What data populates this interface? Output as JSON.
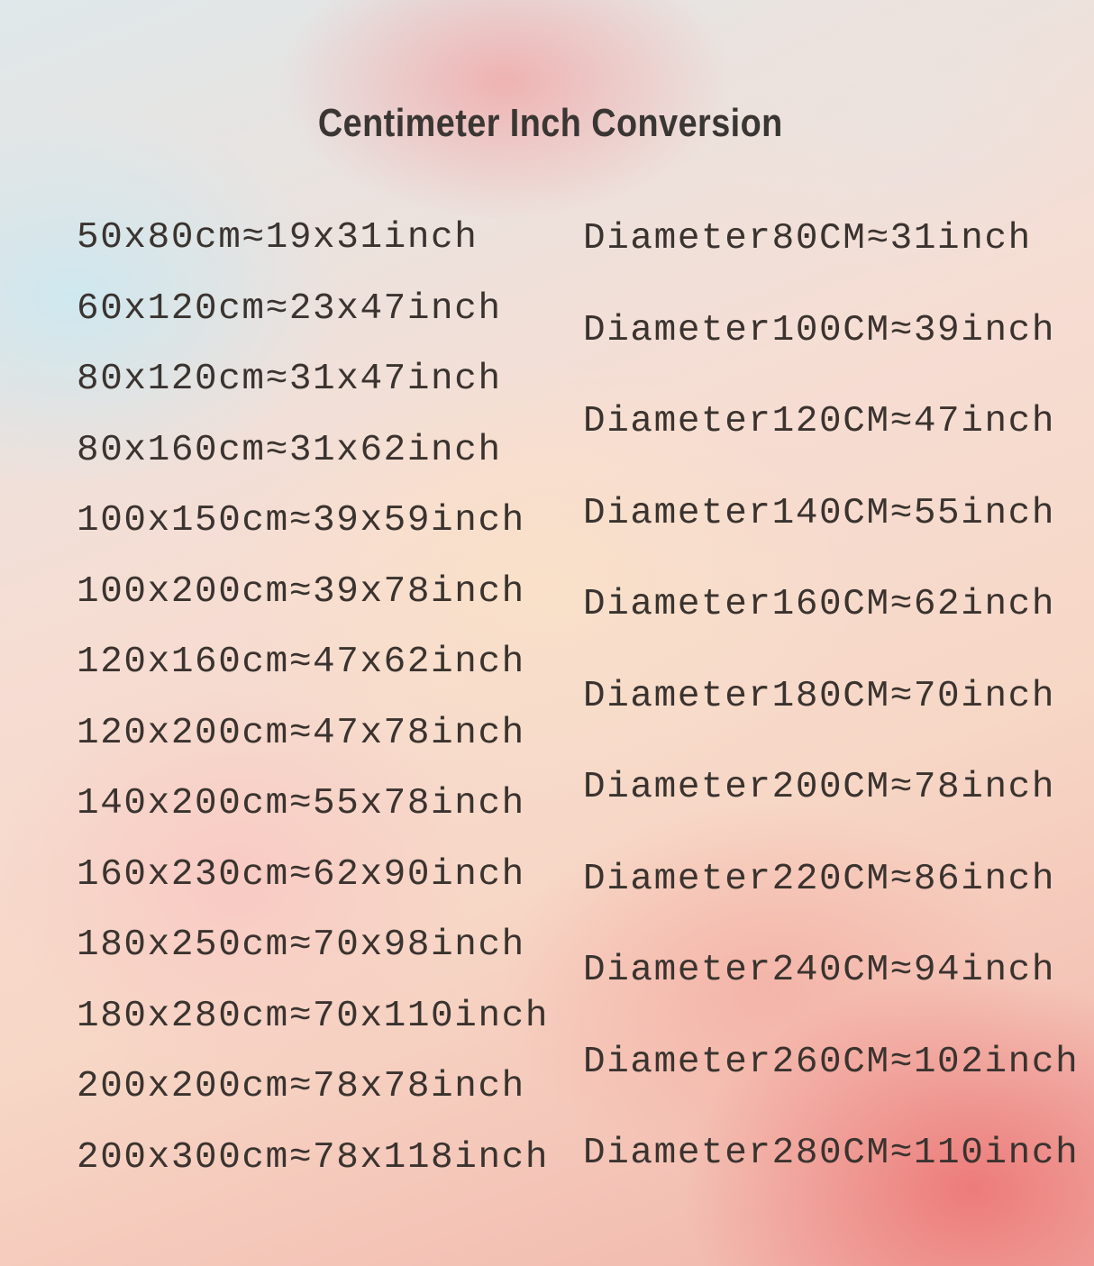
{
  "title": "Centimeter Inch Conversion",
  "rectangle_sizes": [
    "50x80cm≈19x31inch",
    "60x120cm≈23x47inch",
    "80x120cm≈31x47inch",
    "80x160cm≈31x62inch",
    "100x150cm≈39x59inch",
    "100x200cm≈39x78inch",
    "120x160cm≈47x62inch",
    "120x200cm≈47x78inch",
    "140x200cm≈55x78inch",
    "160x230cm≈62x90inch",
    "180x250cm≈70x98inch",
    "180x280cm≈70x110inch",
    "200x200cm≈78x78inch",
    "200x300cm≈78x118inch"
  ],
  "round_sizes": [
    "Diameter80CM≈31inch",
    "Diameter100CM≈39inch",
    "Diameter120CM≈47inch",
    "Diameter140CM≈55inch",
    "Diameter160CM≈62inch",
    "Diameter180CM≈70inch",
    "Diameter200CM≈78inch",
    "Diameter220CM≈86inch",
    "Diameter240CM≈94inch",
    "Diameter260CM≈102inch",
    "Diameter280CM≈110inch"
  ]
}
